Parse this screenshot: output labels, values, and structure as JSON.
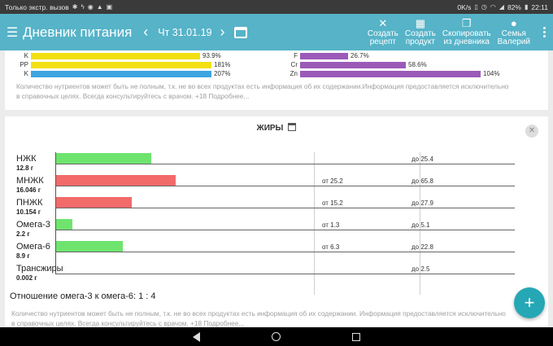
{
  "status_bar": {
    "left_text": "Только экстр. вызов",
    "left_icons": [
      "bluetooth-icon",
      "bolt-icon",
      "whatsapp-icon",
      "notification-icon",
      "image-icon"
    ],
    "speed": "0K/s",
    "battery": "82%",
    "time": "22:11"
  },
  "appbar": {
    "title": "Дневник питания",
    "date": "Чт 31.01.19",
    "actions": [
      {
        "icon": "recipe-icon",
        "label": "Создать\nрецепт"
      },
      {
        "icon": "product-icon",
        "label": "Создать\nпродукт"
      },
      {
        "icon": "copy-icon",
        "label": "Скопировать\nиз дневника"
      },
      {
        "icon": "family-icon",
        "label": "Семья\nВалерий"
      }
    ]
  },
  "nutrients_top": {
    "left": [
      {
        "label": "K",
        "value": "93.9%",
        "fill": 0.939,
        "color": "#f2e012"
      },
      {
        "label": "PP",
        "value": "181%",
        "fill": 1.0,
        "color": "#f2e012"
      },
      {
        "label": "K",
        "value": "207%",
        "fill": 1.0,
        "color": "#3ea5e0"
      }
    ],
    "right": [
      {
        "label": "F",
        "value": "26.7%",
        "fill": 0.267,
        "color": "#9b5ab8"
      },
      {
        "label": "Cr",
        "value": "58.6%",
        "fill": 0.586,
        "color": "#9b5ab8"
      },
      {
        "label": "Zn",
        "value": "104%",
        "fill": 1.0,
        "color": "#9b5ab8"
      }
    ],
    "notice": "Количество нутриентов может быть не полным, т.к. не во всех продуктах есть информация об их содержании.Информация предоставляется исключительно в справочных целях. Всегда консультируйтесь с врачом. +18 Подробнее..."
  },
  "fats": {
    "title": "ЖИРЫ",
    "rows": [
      {
        "name": "НЖК",
        "amount": "12.8 г",
        "value": 12.8,
        "from": "",
        "to": "до 25.4",
        "color": "#6ee46e"
      },
      {
        "name": "МНЖК",
        "amount": "16.046 г",
        "value": 16.046,
        "from": "от 25.2",
        "to": "до 65.8",
        "color": "#f26a6a"
      },
      {
        "name": "ПНЖК",
        "amount": "10.154 г",
        "value": 10.154,
        "from": "от 15.2",
        "to": "до 27.9",
        "color": "#f26a6a"
      },
      {
        "name": "Омега-3",
        "amount": "2.2 г",
        "value": 2.2,
        "from": "от 1.3",
        "to": "до 5.1",
        "color": "#6ee46e"
      },
      {
        "name": "Омега-6",
        "amount": "8.9 г",
        "value": 8.9,
        "from": "от 6.3",
        "to": "до 22.8",
        "color": "#6ee46e"
      },
      {
        "name": "Трансжиры",
        "amount": "0.002 г",
        "value": 0.002,
        "from": "",
        "to": "до 2.5",
        "color": "#6ee46e"
      }
    ],
    "ratio": "Отношение омега-3 к омега-6: 1 : 4",
    "notice": "Количество нутриентов может быть не полным, т.к. не во всех продуктах есть информация об их содержании. Информация предоставляется исключительно в справочных целях. Всегда консультируйтесь с врачом. +18 Подробнее..."
  },
  "fab": "+"
}
